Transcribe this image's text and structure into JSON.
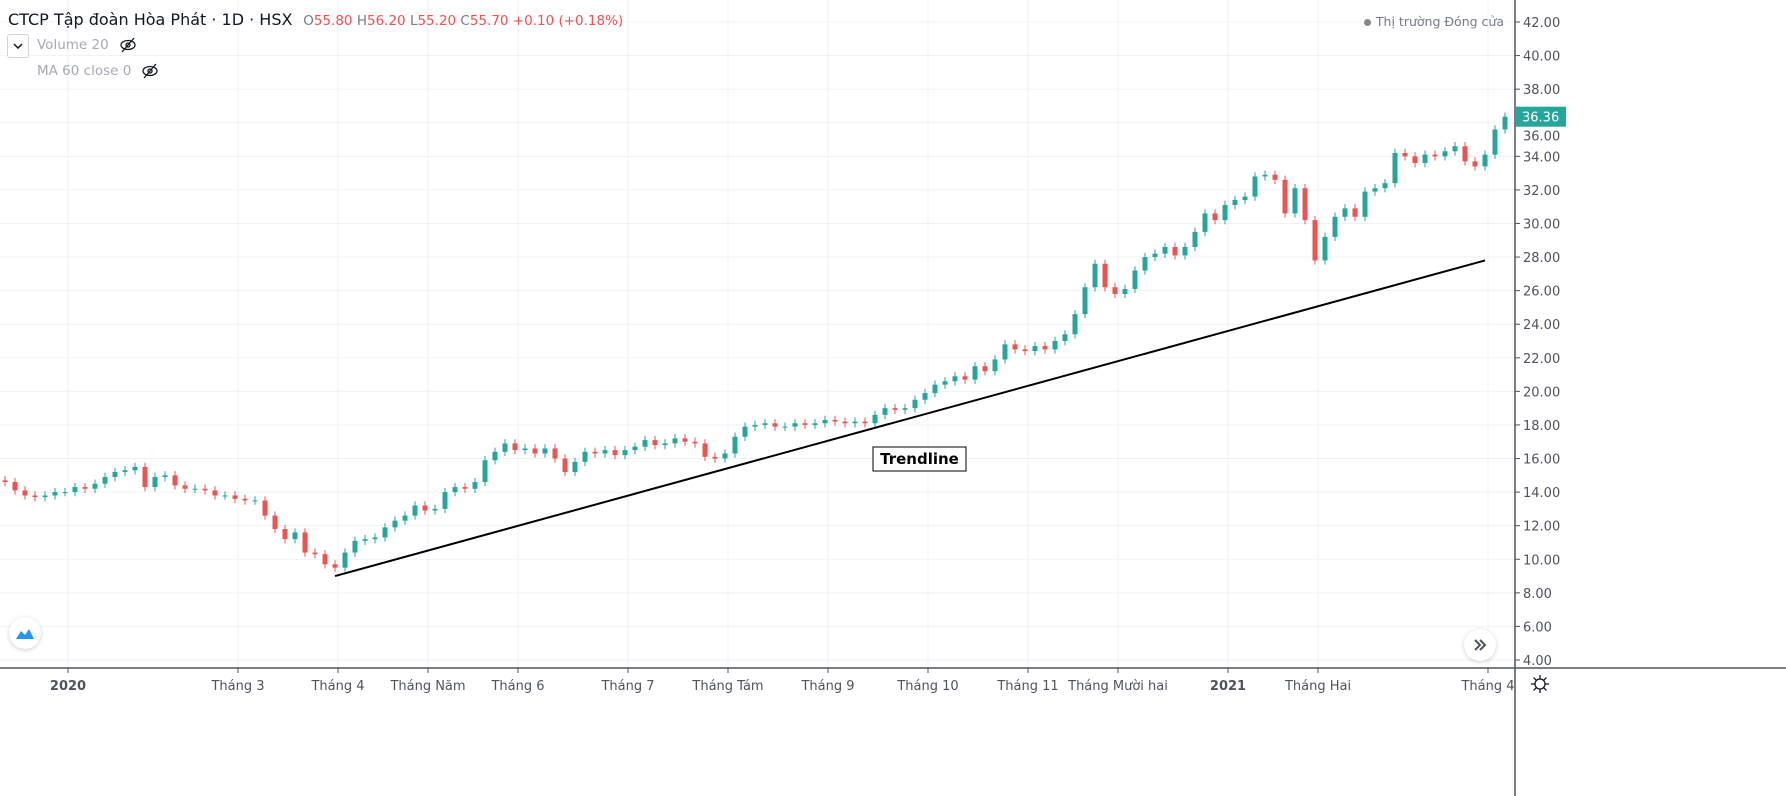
{
  "header": {
    "symbol": "CTCP Tập đoàn Hòa Phát · 1D · HSX",
    "open_label": "O",
    "open": "55.80",
    "high_label": "H",
    "high": "56.20",
    "low_label": "L",
    "low": "55.20",
    "close_label": "C",
    "close": "55.70",
    "change": "+0.10 (+0.18%)"
  },
  "indicators": [
    {
      "label": "Volume 20",
      "icon": "eye-off-icon"
    },
    {
      "label": "MA 60 close 0",
      "icon": "eye-off-icon"
    }
  ],
  "market_status": "Thị trường Đóng cửa",
  "colors": {
    "up": "#26a69a",
    "down": "#ef5350",
    "grid": "#eef2f7",
    "axis": "#50535e",
    "last_price_bg": "#26a69a"
  },
  "chart_data": {
    "type": "candlestick",
    "ylim": [
      4,
      42
    ],
    "grid": true,
    "y_ticks": [
      "42.00",
      "40.00",
      "38.00",
      "36.00",
      "34.00",
      "32.00",
      "30.00",
      "28.00",
      "26.00",
      "24.00",
      "22.00",
      "20.00",
      "18.00",
      "16.00",
      "14.00",
      "12.00",
      "10.00",
      "8.00",
      "6.00",
      "4.00"
    ],
    "last_price": "36.36",
    "x_ticks": [
      {
        "label": "2020",
        "bold": true,
        "index": 6
      },
      {
        "label": "Tháng 3",
        "index": 23
      },
      {
        "label": "Tháng 4",
        "index": 33
      },
      {
        "label": "Tháng Năm",
        "index": 42
      },
      {
        "label": "Tháng 6",
        "index": 51
      },
      {
        "label": "Tháng 7",
        "index": 62
      },
      {
        "label": "Tháng Tám",
        "index": 72
      },
      {
        "label": "Tháng 9",
        "index": 82
      },
      {
        "label": "Tháng 10",
        "index": 92
      },
      {
        "label": "Tháng 11",
        "index": 102
      },
      {
        "label": "Tháng Mười hai",
        "index": 111
      },
      {
        "label": "2021",
        "bold": true,
        "index": 122
      },
      {
        "label": "Tháng Hai",
        "index": 131
      },
      {
        "label": "Tháng 4",
        "index": 148
      }
    ],
    "closes": [
      14.6,
      14.1,
      13.8,
      13.7,
      13.8,
      14.0,
      14.0,
      14.3,
      14.2,
      14.5,
      14.9,
      15.2,
      15.3,
      15.5,
      14.3,
      14.9,
      15.0,
      14.4,
      14.2,
      14.2,
      14.1,
      13.8,
      13.8,
      13.6,
      13.5,
      13.5,
      12.6,
      11.8,
      11.2,
      11.6,
      10.4,
      10.3,
      9.7,
      9.5,
      10.4,
      11.1,
      11.2,
      11.3,
      11.9,
      12.3,
      12.6,
      13.2,
      12.9,
      13.0,
      14.0,
      14.3,
      14.2,
      14.6,
      15.9,
      16.4,
      16.9,
      16.5,
      16.6,
      16.3,
      16.6,
      16.0,
      15.2,
      15.8,
      16.4,
      16.3,
      16.5,
      16.2,
      16.5,
      16.7,
      17.1,
      16.8,
      16.9,
      17.2,
      17.0,
      16.9,
      16.1,
      16.0,
      16.3,
      17.3,
      17.9,
      18.0,
      18.1,
      17.9,
      17.9,
      18.1,
      18.0,
      18.1,
      18.3,
      18.2,
      18.1,
      18.2,
      18.1,
      18.6,
      19.0,
      18.9,
      19.0,
      19.5,
      19.9,
      20.4,
      20.6,
      20.9,
      20.7,
      21.5,
      21.2,
      21.9,
      22.8,
      22.5,
      22.4,
      22.7,
      22.5,
      23.0,
      23.4,
      24.6,
      26.2,
      27.6,
      26.2,
      25.8,
      26.1,
      27.2,
      28.0,
      28.2,
      28.6,
      28.1,
      28.6,
      29.5,
      30.6,
      30.2,
      31.1,
      31.4,
      31.6,
      32.8,
      32.9,
      32.6,
      30.6,
      32.1,
      30.2,
      27.8,
      29.2,
      30.4,
      30.9,
      30.4,
      31.9,
      32.1,
      32.4,
      34.2,
      34.0,
      33.6,
      34.1,
      34.0,
      34.3,
      34.6,
      33.7,
      33.4,
      34.1,
      35.6,
      36.36
    ],
    "trendline": {
      "label": "Trendline",
      "start_index": 33,
      "start_price": 9.0,
      "end_index": 148,
      "end_price": 27.8
    }
  }
}
